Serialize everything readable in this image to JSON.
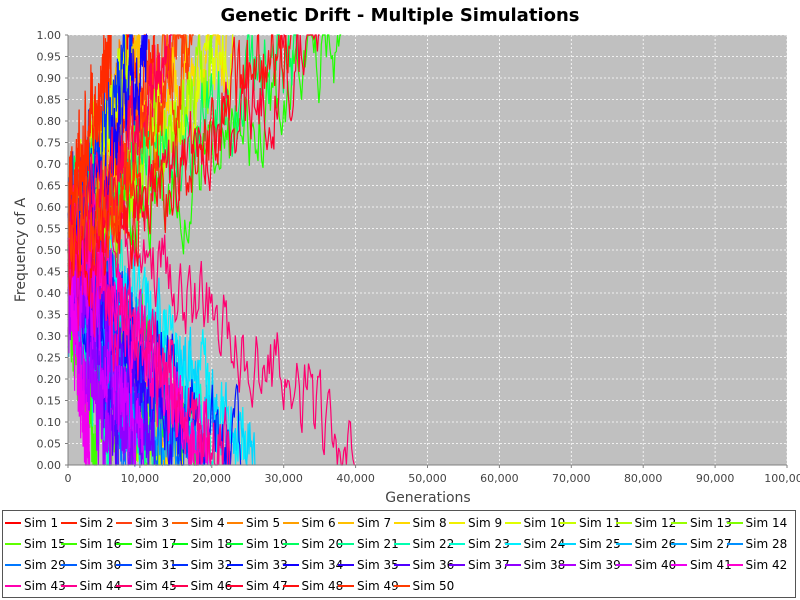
{
  "chart_data": {
    "type": "line",
    "title": "Genetic Drift - Multiple Simulations",
    "xlabel": "Generations",
    "ylabel": "Frequency of A",
    "xlim": [
      0,
      100000
    ],
    "ylim": [
      0,
      1.0
    ],
    "x_ticks": [
      "0",
      "10,000",
      "20,000",
      "30,000",
      "40,000",
      "50,000",
      "60,000",
      "70,000",
      "80,000",
      "90,000",
      "100,000"
    ],
    "y_ticks": [
      "0.00",
      "0.05",
      "0.10",
      "0.15",
      "0.20",
      "0.25",
      "0.30",
      "0.35",
      "0.40",
      "0.45",
      "0.50",
      "0.55",
      "0.60",
      "0.65",
      "0.70",
      "0.75",
      "0.80",
      "0.85",
      "0.90",
      "0.95",
      "1.00"
    ],
    "grid": true,
    "plot_background": "#c0c0c0",
    "legend_position": "bottom",
    "series": [
      {
        "name": "Sim 1",
        "color": "#ff0000",
        "start": 0.55,
        "fixation_generation": 9000,
        "fixed_at": 1
      },
      {
        "name": "Sim 2",
        "color": "#ff2000",
        "start": 0.5,
        "fixation_generation": 12000,
        "fixed_at": 1
      },
      {
        "name": "Sim 3",
        "color": "#ff4010",
        "start": 0.6,
        "fixation_generation": 17000,
        "fixed_at": 1
      },
      {
        "name": "Sim 4",
        "color": "#ff6000",
        "start": 0.45,
        "fixation_generation": 15000,
        "fixed_at": 1
      },
      {
        "name": "Sim 5",
        "color": "#ff8000",
        "start": 0.5,
        "fixation_generation": 8000,
        "fixed_at": 1
      },
      {
        "name": "Sim 6",
        "color": "#ffa000",
        "start": 0.4,
        "fixation_generation": 14000,
        "fixed_at": 0
      },
      {
        "name": "Sim 7",
        "color": "#ffc000",
        "start": 0.5,
        "fixation_generation": 10000,
        "fixed_at": 1
      },
      {
        "name": "Sim 8",
        "color": "#ffd800",
        "start": 0.55,
        "fixation_generation": 22000,
        "fixed_at": 1
      },
      {
        "name": "Sim 9",
        "color": "#f0f000",
        "start": 0.45,
        "fixation_generation": 16000,
        "fixed_at": 0
      },
      {
        "name": "Sim 10",
        "color": "#e0ff00",
        "start": 0.5,
        "fixation_generation": 23000,
        "fixed_at": 1
      },
      {
        "name": "Sim 11",
        "color": "#c8ff00",
        "start": 0.6,
        "fixation_generation": 9000,
        "fixed_at": 1
      },
      {
        "name": "Sim 12",
        "color": "#b0ff00",
        "start": 0.5,
        "fixation_generation": 13000,
        "fixed_at": 0
      },
      {
        "name": "Sim 13",
        "color": "#98ff00",
        "start": 0.45,
        "fixation_generation": 20000,
        "fixed_at": 1
      },
      {
        "name": "Sim 14",
        "color": "#80ff00",
        "start": 0.4,
        "fixation_generation": 7000,
        "fixed_at": 0
      },
      {
        "name": "Sim 15",
        "color": "#60ff00",
        "start": 0.55,
        "fixation_generation": 11000,
        "fixed_at": 0
      },
      {
        "name": "Sim 16",
        "color": "#40ff00",
        "start": 0.35,
        "fixation_generation": 4000,
        "fixed_at": 0
      },
      {
        "name": "Sim 17",
        "color": "#20ff00",
        "start": 0.5,
        "fixation_generation": 38000,
        "fixed_at": 1
      },
      {
        "name": "Sim 18",
        "color": "#00ff10",
        "start": 0.45,
        "fixation_generation": 9000,
        "fixed_at": 0
      },
      {
        "name": "Sim 19",
        "color": "#00ff30",
        "start": 0.5,
        "fixation_generation": 18000,
        "fixed_at": 0
      },
      {
        "name": "Sim 20",
        "color": "#00ff60",
        "start": 0.6,
        "fixation_generation": 32000,
        "fixed_at": 1
      },
      {
        "name": "Sim 21",
        "color": "#00ff90",
        "start": 0.45,
        "fixation_generation": 12000,
        "fixed_at": 0
      },
      {
        "name": "Sim 22",
        "color": "#00ffb0",
        "start": 0.4,
        "fixation_generation": 6000,
        "fixed_at": 0
      },
      {
        "name": "Sim 23",
        "color": "#00ffd0",
        "start": 0.5,
        "fixation_generation": 21000,
        "fixed_at": 0
      },
      {
        "name": "Sim 24",
        "color": "#00f0ff",
        "start": 0.55,
        "fixation_generation": 25000,
        "fixed_at": 0
      },
      {
        "name": "Sim 25",
        "color": "#00d8ff",
        "start": 0.45,
        "fixation_generation": 26000,
        "fixed_at": 0
      },
      {
        "name": "Sim 26",
        "color": "#00c0ff",
        "start": 0.5,
        "fixation_generation": 10000,
        "fixed_at": 0
      },
      {
        "name": "Sim 27",
        "color": "#00a8ff",
        "start": 0.35,
        "fixation_generation": 15000,
        "fixed_at": 0
      },
      {
        "name": "Sim 28",
        "color": "#0090ff",
        "start": 0.4,
        "fixation_generation": 19000,
        "fixed_at": 0
      },
      {
        "name": "Sim 29",
        "color": "#0078ff",
        "start": 0.5,
        "fixation_generation": 8000,
        "fixed_at": 0
      },
      {
        "name": "Sim 30",
        "color": "#0060ff",
        "start": 0.45,
        "fixation_generation": 13000,
        "fixed_at": 0
      },
      {
        "name": "Sim 31",
        "color": "#0048ff",
        "start": 0.55,
        "fixation_generation": 17000,
        "fixed_at": 0
      },
      {
        "name": "Sim 32",
        "color": "#0030ff",
        "start": 0.6,
        "fixation_generation": 9000,
        "fixed_at": 1
      },
      {
        "name": "Sim 33",
        "color": "#0018ff",
        "start": 0.4,
        "fixation_generation": 24000,
        "fixed_at": 0
      },
      {
        "name": "Sim 34",
        "color": "#1000ff",
        "start": 0.5,
        "fixation_generation": 11000,
        "fixed_at": 1
      },
      {
        "name": "Sim 35",
        "color": "#3000ff",
        "start": 0.45,
        "fixation_generation": 16000,
        "fixed_at": 0
      },
      {
        "name": "Sim 36",
        "color": "#5000ff",
        "start": 0.5,
        "fixation_generation": 7000,
        "fixed_at": 0
      },
      {
        "name": "Sim 37",
        "color": "#7000ff",
        "start": 0.55,
        "fixation_generation": 12000,
        "fixed_at": 0
      },
      {
        "name": "Sim 38",
        "color": "#9000ff",
        "start": 0.4,
        "fixation_generation": 9500,
        "fixed_at": 0
      },
      {
        "name": "Sim 39",
        "color": "#b000ff",
        "start": 0.35,
        "fixation_generation": 6000,
        "fixed_at": 0
      },
      {
        "name": "Sim 40",
        "color": "#d000ff",
        "start": 0.45,
        "fixation_generation": 10500,
        "fixed_at": 0
      },
      {
        "name": "Sim 41",
        "color": "#f000f0",
        "start": 0.4,
        "fixation_generation": 3000,
        "fixed_at": 0
      },
      {
        "name": "Sim 42",
        "color": "#ff00d0",
        "start": 0.5,
        "fixation_generation": 20000,
        "fixed_at": 0
      },
      {
        "name": "Sim 43",
        "color": "#ff00b0",
        "start": 0.55,
        "fixation_generation": 18500,
        "fixed_at": 0
      },
      {
        "name": "Sim 44",
        "color": "#ff0090",
        "start": 0.45,
        "fixation_generation": 22500,
        "fixed_at": 0
      },
      {
        "name": "Sim 45",
        "color": "#ff0070",
        "start": 0.6,
        "fixation_generation": 40000,
        "fixed_at": 0
      },
      {
        "name": "Sim 46",
        "color": "#ff0050",
        "start": 0.5,
        "fixation_generation": 14500,
        "fixed_at": 1
      },
      {
        "name": "Sim 47",
        "color": "#ff0030",
        "start": 0.55,
        "fixation_generation": 35000,
        "fixed_at": 1
      },
      {
        "name": "Sim 48",
        "color": "#ff1010",
        "start": 0.5,
        "fixation_generation": 31000,
        "fixed_at": 1
      },
      {
        "name": "Sim 49",
        "color": "#ff2a00",
        "start": 0.65,
        "fixation_generation": 6000,
        "fixed_at": 1
      },
      {
        "name": "Sim 50",
        "color": "#ff3c00",
        "start": 0.5,
        "fixation_generation": 17500,
        "fixed_at": 1
      }
    ]
  }
}
